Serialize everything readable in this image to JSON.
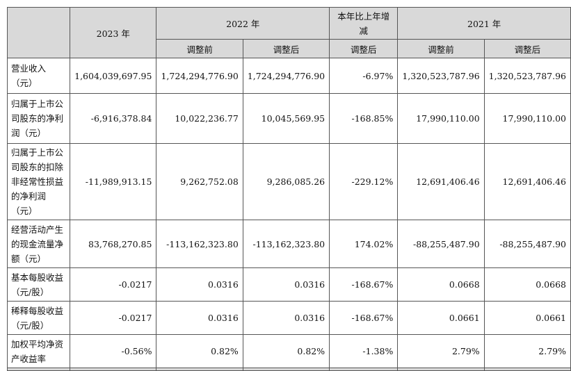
{
  "header": {
    "col_2023": "2023 年",
    "col_2022": "2022 年",
    "col_change": "本年比上年增减",
    "col_2021": "2021 年",
    "before_adj": "调整前",
    "after_adj": "调整后"
  },
  "rows": [
    {
      "label": "营业收入（元）",
      "v2023": "1,604,039,697.95",
      "v2022_before": "1,724,294,776.90",
      "v2022_after": "1,724,294,776.90",
      "change": "-6.97%",
      "v2021_before": "1,320,523,787.96",
      "v2021_after": "1,320,523,787.96"
    },
    {
      "label": "归属于上市公司股东的净利润（元）",
      "v2023": "-6,916,378.84",
      "v2022_before": "10,022,236.77",
      "v2022_after": "10,045,569.95",
      "change": "-168.85%",
      "v2021_before": "17,990,110.00",
      "v2021_after": "17,990,110.00"
    },
    {
      "label": "归属于上市公司股东的扣除非经常性损益的净利润（元）",
      "v2023": "-11,989,913.15",
      "v2022_before": "9,262,752.08",
      "v2022_after": "9,286,085.26",
      "change": "-229.12%",
      "v2021_before": "12,691,406.46",
      "v2021_after": "12,691,406.46"
    },
    {
      "label": "经营活动产生的现金流量净额（元）",
      "v2023": "83,768,270.85",
      "v2022_before": "-113,162,323.80",
      "v2022_after": "-113,162,323.80",
      "change": "174.02%",
      "v2021_before": "-88,255,487.90",
      "v2021_after": "-88,255,487.90"
    },
    {
      "label": "基本每股收益（元/股）",
      "v2023": "-0.0217",
      "v2022_before": "0.0316",
      "v2022_after": "0.0316",
      "change": "-168.67%",
      "v2021_before": "0.0668",
      "v2021_after": "0.0668"
    },
    {
      "label": "稀释每股收益（元/股）",
      "v2023": "-0.0217",
      "v2022_before": "0.0316",
      "v2022_after": "0.0316",
      "change": "-168.67%",
      "v2021_before": "0.0661",
      "v2021_after": "0.0661"
    },
    {
      "label": "加权平均净资产收益率",
      "v2023": "-0.56%",
      "v2022_before": "0.82%",
      "v2022_after": "0.82%",
      "change": "-1.38%",
      "v2021_before": "2.79%",
      "v2021_after": "2.79%"
    }
  ]
}
